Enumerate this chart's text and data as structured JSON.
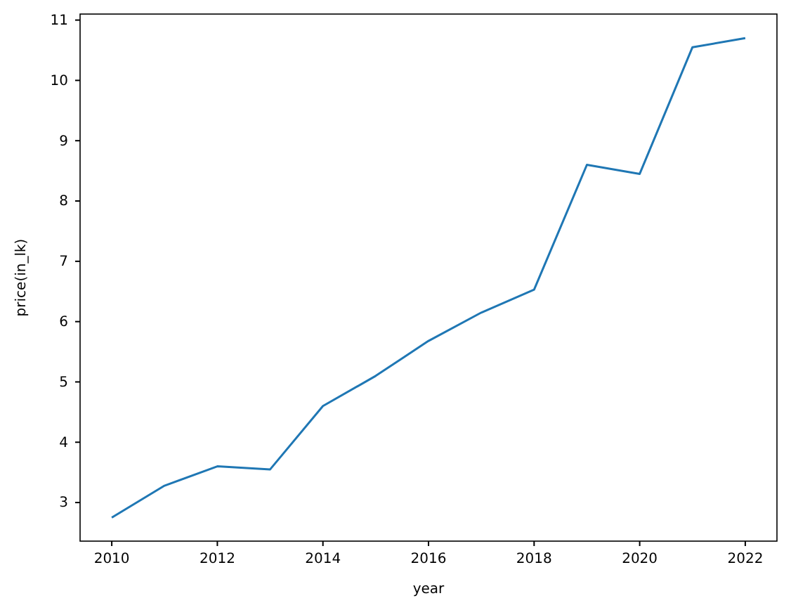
{
  "chart_data": {
    "type": "line",
    "xlabel": "year",
    "ylabel": "price(in_lk)",
    "x": [
      2010,
      2011,
      2012,
      2013,
      2014,
      2015,
      2016,
      2017,
      2018,
      2019,
      2020,
      2021,
      2022
    ],
    "series": [
      {
        "color": "#1f77b4",
        "values": [
          2.75,
          3.28,
          3.6,
          3.55,
          4.6,
          5.1,
          5.68,
          6.15,
          6.53,
          8.6,
          8.45,
          10.55,
          10.7
        ]
      }
    ],
    "xlim": [
      2009.4,
      2022.6
    ],
    "xticks": [
      2010,
      2012,
      2014,
      2016,
      2018,
      2020,
      2022
    ],
    "ylim": [
      2.36,
      11.1
    ],
    "yticks": [
      3,
      4,
      5,
      6,
      7,
      8,
      9,
      10,
      11
    ],
    "line_style": "solid"
  }
}
